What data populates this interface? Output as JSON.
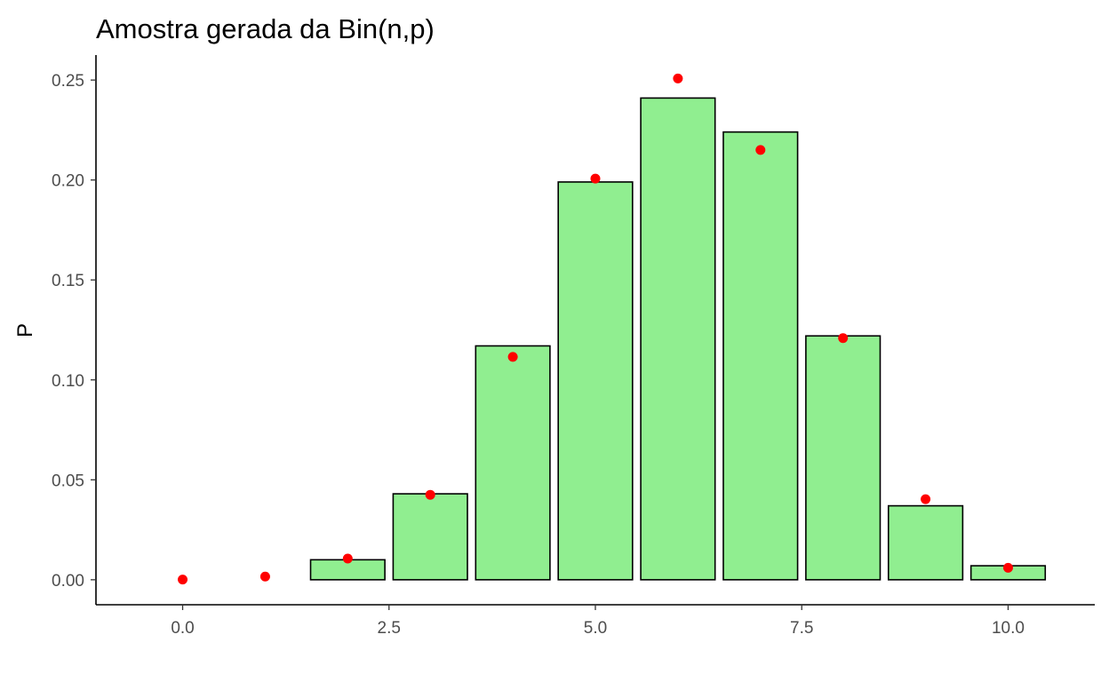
{
  "chart_data": {
    "type": "bar",
    "title": "Amostra gerada da Bin(n,p)",
    "xlabel": "",
    "ylabel": "P",
    "xlim": [
      -1.05,
      11.05
    ],
    "ylim": [
      -0.0125,
      0.2625
    ],
    "x_ticks": [
      0,
      2.5,
      5,
      7.5,
      10
    ],
    "x_tick_labels": [
      "0.0",
      "2.5",
      "5.0",
      "7.5",
      "10.0"
    ],
    "y_ticks": [
      0,
      0.05,
      0.1,
      0.15,
      0.2,
      0.25
    ],
    "y_tick_labels": [
      "0.00",
      "0.05",
      "0.10",
      "0.15",
      "0.20",
      "0.25"
    ],
    "grid": false,
    "bars": {
      "x": [
        2,
        3,
        4,
        5,
        6,
        7,
        8,
        9,
        10
      ],
      "values": [
        0.01,
        0.043,
        0.117,
        0.199,
        0.241,
        0.224,
        0.122,
        0.037,
        0.007
      ],
      "fill": "#90EE90",
      "stroke": "#000000"
    },
    "points": {
      "x": [
        0,
        1,
        2,
        3,
        4,
        5,
        6,
        7,
        8,
        9,
        10
      ],
      "values": [
        0.0001,
        0.0016,
        0.0106,
        0.0425,
        0.1115,
        0.2007,
        0.2508,
        0.215,
        0.1209,
        0.0403,
        0.006
      ],
      "color": "#FF0000"
    }
  }
}
